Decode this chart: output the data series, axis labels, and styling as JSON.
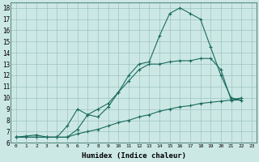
{
  "xlabel": "Humidex (Indice chaleur)",
  "xlim": [
    -0.5,
    23.5
  ],
  "ylim": [
    6,
    18.5
  ],
  "yticks": [
    6,
    7,
    8,
    9,
    10,
    11,
    12,
    13,
    14,
    15,
    16,
    17,
    18
  ],
  "xticks": [
    0,
    1,
    2,
    3,
    4,
    5,
    6,
    7,
    8,
    9,
    10,
    11,
    12,
    13,
    14,
    15,
    16,
    17,
    18,
    19,
    20,
    21,
    22,
    23
  ],
  "xtick_labels": [
    "0",
    "1",
    "2",
    "3",
    "4",
    "5",
    "6",
    "7",
    "8",
    "9",
    "10",
    "11",
    "12",
    "13",
    "14",
    "15",
    "16",
    "17",
    "18",
    "19",
    "20",
    "21",
    "22",
    "23"
  ],
  "line_color": "#1a6b5e",
  "bg_color": "#cce8e5",
  "grid_color": "#9dc4bf",
  "line1_x": [
    0,
    1,
    2,
    3,
    4,
    5,
    6,
    7,
    8,
    9,
    10,
    11,
    12,
    13,
    14,
    15,
    16,
    17,
    18,
    19,
    20,
    21,
    22
  ],
  "line1_y": [
    6.5,
    6.5,
    6.5,
    6.5,
    6.5,
    7.5,
    9.0,
    8.5,
    9.0,
    9.5,
    10.5,
    12.0,
    13.0,
    13.2,
    15.5,
    17.5,
    18.0,
    17.5,
    17.0,
    14.5,
    12.0,
    10.0,
    9.8
  ],
  "line2_x": [
    0,
    1,
    2,
    3,
    4,
    5,
    6,
    7,
    8,
    9,
    10,
    11,
    12,
    13,
    14,
    15,
    16,
    17,
    18,
    19,
    20,
    21,
    22
  ],
  "line2_y": [
    6.5,
    6.5,
    6.5,
    6.5,
    6.5,
    6.5,
    7.2,
    8.5,
    8.3,
    9.2,
    10.5,
    11.5,
    12.5,
    13.0,
    13.0,
    13.2,
    13.3,
    13.3,
    13.5,
    13.5,
    12.5,
    9.8,
    9.8
  ],
  "line3_x": [
    0,
    1,
    2,
    3,
    4,
    5,
    6,
    7,
    8,
    9,
    10,
    11,
    12,
    13,
    14,
    15,
    16,
    17,
    18,
    19,
    20,
    21,
    22
  ],
  "line3_y": [
    6.5,
    6.6,
    6.7,
    6.5,
    6.5,
    6.5,
    6.8,
    7.0,
    7.2,
    7.5,
    7.8,
    8.0,
    8.3,
    8.5,
    8.8,
    9.0,
    9.2,
    9.3,
    9.5,
    9.6,
    9.7,
    9.8,
    10.0
  ]
}
